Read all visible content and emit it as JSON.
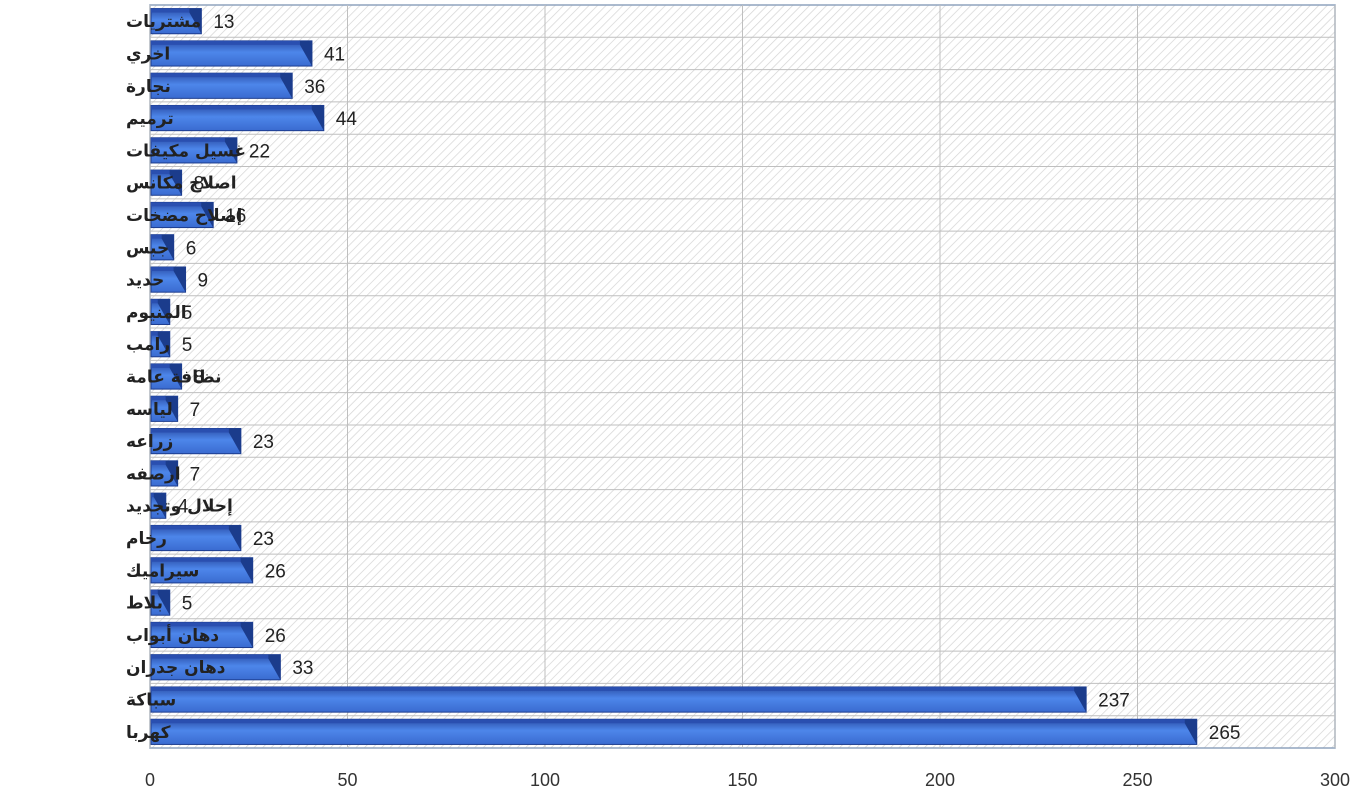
{
  "chart_data": {
    "type": "bar",
    "orientation": "horizontal",
    "categories": [
      "مشتريات",
      "اخري",
      "نجارة",
      "ترميم",
      "غسيل مكيفات",
      "اصلاح مكانس",
      "إصلاح مضخات",
      "جبس",
      "حديد",
      "المنيوم",
      "رامب",
      "نظافة عامة",
      "لياسه",
      "زراعه",
      "ارصفه",
      "إحلال وتجديد",
      "رخام",
      "سيراميك",
      "بلاط",
      "دهان أبواب",
      "دهان جدران",
      "سباكة",
      "كهربا"
    ],
    "values": [
      13,
      41,
      36,
      44,
      22,
      8,
      16,
      6,
      9,
      5,
      5,
      8,
      7,
      23,
      7,
      4,
      23,
      26,
      5,
      26,
      33,
      237,
      265
    ],
    "xlim": [
      0,
      300
    ],
    "xticks": [
      "0",
      "50",
      "100",
      "150",
      "200",
      "250",
      "300"
    ],
    "grid": true,
    "data_labels": true,
    "colors": {
      "bar_top": "#2a4fb0",
      "bar_face": "#4a82e6",
      "bar_end": "#1b3c8c",
      "plot_border": "#8fa3bd",
      "grid": "#bfbfbf"
    }
  }
}
